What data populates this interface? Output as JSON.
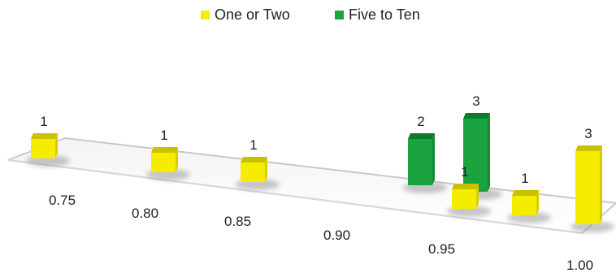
{
  "chart_data": {
    "type": "bar",
    "style": "3d-perspective",
    "title": "",
    "xlabel": "",
    "ylabel": "",
    "categories": [
      "0.75",
      "0.80",
      "0.85",
      "0.90",
      "0.95",
      "1.00"
    ],
    "legend_position": "top-center",
    "grid": false,
    "series": [
      {
        "name": "One or Two",
        "color": "#F5EC00",
        "values": [
          1,
          1,
          1,
          null,
          1,
          3
        ],
        "extra": {
          "category": "0.95",
          "offset": "second-bar",
          "value": 1
        }
      },
      {
        "name": "Five to Ten",
        "color": "#1BA33F",
        "values": [
          null,
          null,
          null,
          null,
          2,
          null
        ]
      }
    ],
    "bars": [
      {
        "series": "One or Two",
        "label": "1",
        "value": 1
      },
      {
        "series": "One or Two",
        "label": "1",
        "value": 1
      },
      {
        "series": "One or Two",
        "label": "1",
        "value": 1
      },
      {
        "series": "Five to Ten",
        "label": "2",
        "value": 2
      },
      {
        "series": "Five to Ten",
        "label": "3",
        "value": 3
      },
      {
        "series": "One or Two",
        "label": "1",
        "value": 1
      },
      {
        "series": "One or Two",
        "label": "1",
        "value": 1
      },
      {
        "series": "One or Two",
        "label": "3",
        "value": 3
      }
    ]
  }
}
